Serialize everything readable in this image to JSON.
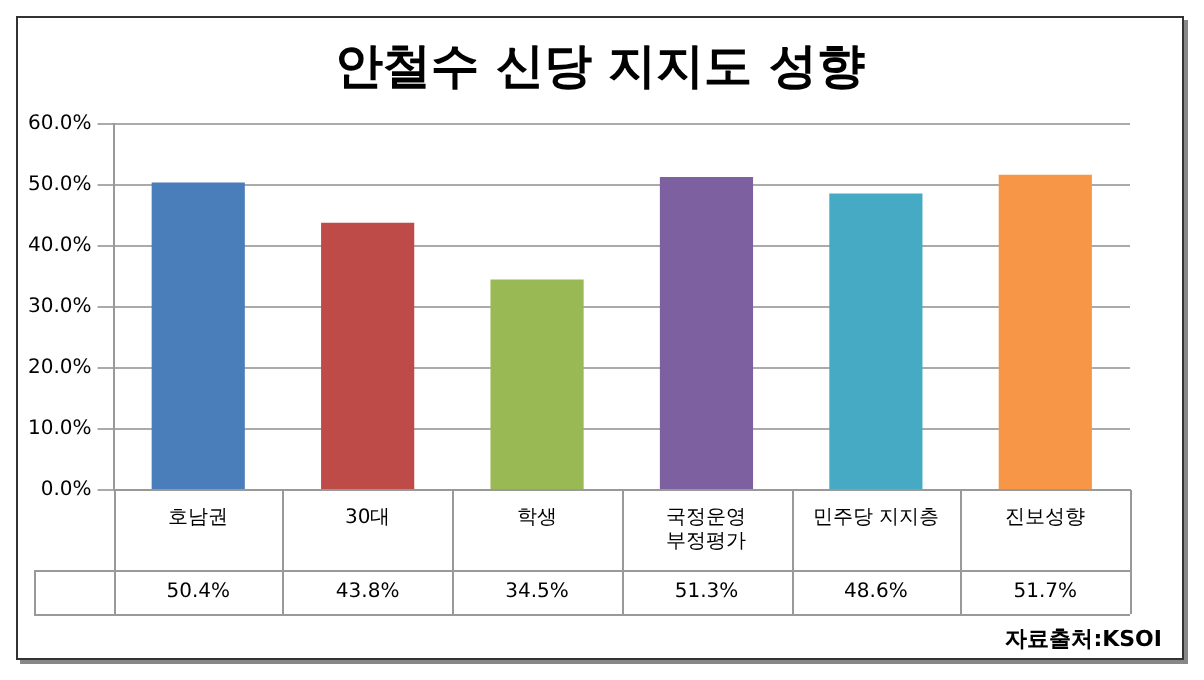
{
  "chart_data": {
    "type": "bar",
    "title": "안철수 신당 지지도 성향",
    "categories": [
      "호남권",
      "30대",
      "학생",
      "국정운영\n부정평가",
      "민주당 지지층",
      "진보성향"
    ],
    "values": [
      50.4,
      43.8,
      34.5,
      51.3,
      48.6,
      51.7
    ],
    "colors": [
      "#4a7ebb",
      "#be4b48",
      "#98b954",
      "#7d60a0",
      "#46aac5",
      "#f79646"
    ],
    "ylim": [
      0,
      60
    ],
    "yticks": [
      {
        "value": 0,
        "label": "0.0%"
      },
      {
        "value": 10,
        "label": "10.0%"
      },
      {
        "value": 20,
        "label": "20.0%"
      },
      {
        "value": 30,
        "label": "30.0%"
      },
      {
        "value": 40,
        "label": "40.0%"
      },
      {
        "value": 50,
        "label": "50.0%"
      },
      {
        "value": 60,
        "label": "60.0%"
      }
    ],
    "value_labels": [
      "50.4%",
      "43.8%",
      "34.5%",
      "51.3%",
      "48.6%",
      "51.7%"
    ],
    "grid": "y",
    "legend": false,
    "annotations": [
      "자료출처:KSOI"
    ]
  }
}
